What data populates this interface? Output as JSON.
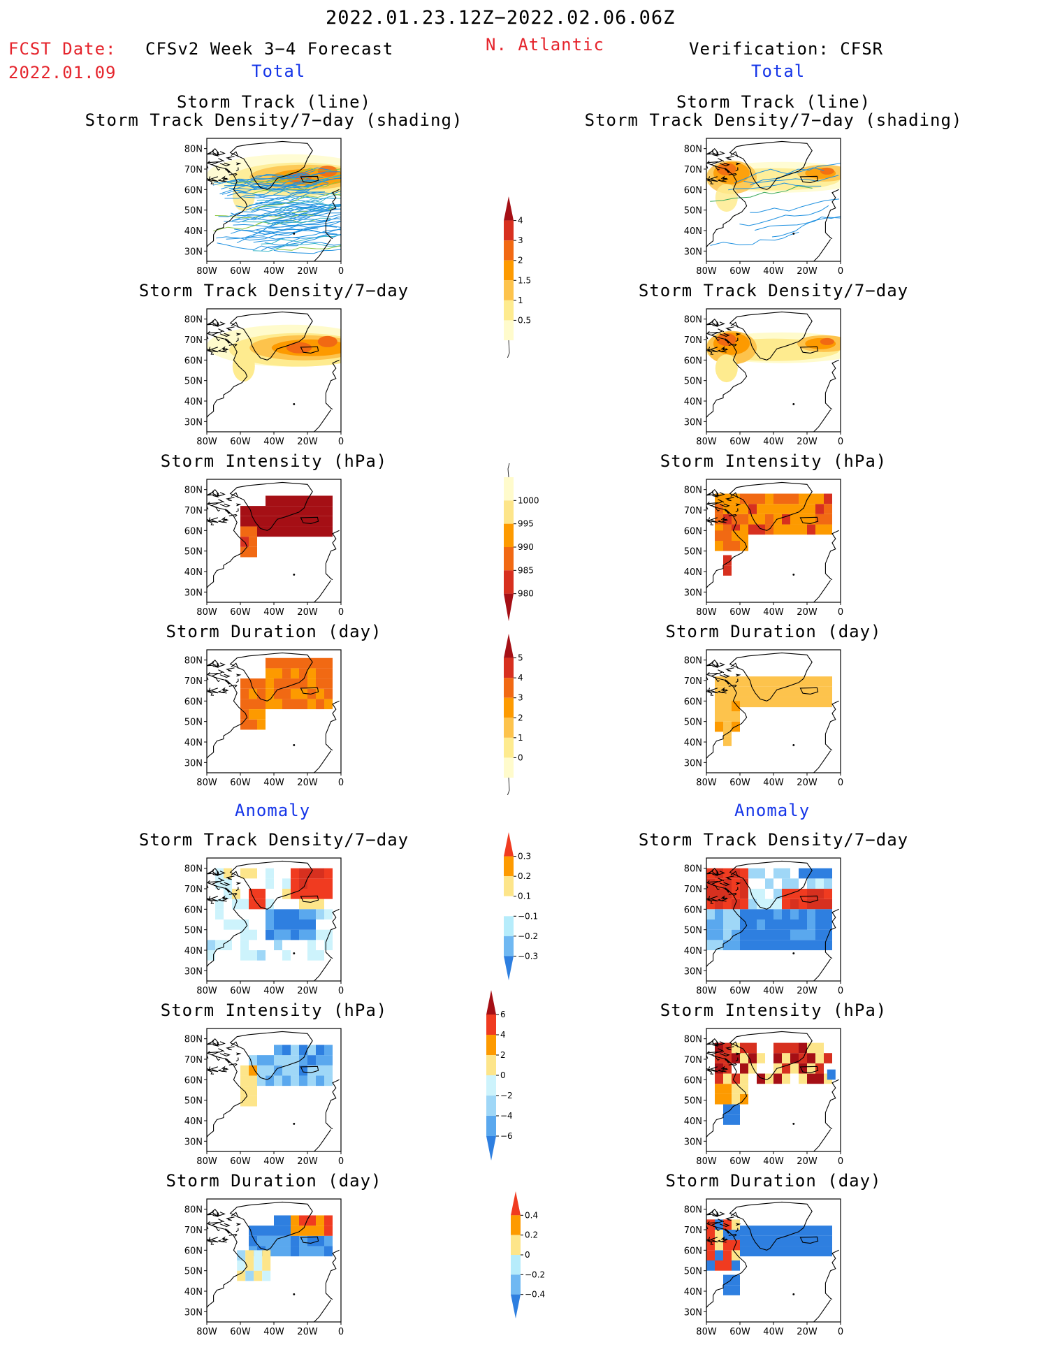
{
  "header": {
    "period": "2022.01.23.12Z−2022.02.06.06Z",
    "fcst_label": "FCST Date:",
    "fcst_date": "2022.01.09",
    "model": "CFSv2 Week 3−4 Forecast",
    "region": "N. Atlantic",
    "verification": "Verification: CFSR",
    "total_left": "Total",
    "total_right": "Total",
    "anomaly_left": "Anomaly",
    "anomaly_right": "Anomaly"
  },
  "titles": {
    "track_line": "Storm Track (line)",
    "track_shading": "Storm Track Density/7−day (shading)",
    "density": "Storm Track Density/7−day",
    "intensity": "Storm Intensity (hPa)",
    "duration": "Storm Duration (day)"
  },
  "axes": {
    "lat_labels": [
      "80N",
      "70N",
      "60N",
      "50N",
      "40N",
      "30N"
    ],
    "lon_labels": [
      "80W",
      "60W",
      "40W",
      "20W",
      "0"
    ]
  },
  "colorbars": [
    {
      "id": "density_total",
      "labels": [
        "4",
        "3",
        "2",
        "1.5",
        "1",
        "0.5"
      ],
      "colors": [
        "#a50f15",
        "#d7301f",
        "#f16913",
        "#fd9a00",
        "#fdc34c",
        "#feeb8f",
        "#fffbcc"
      ]
    },
    {
      "id": "intensity_total",
      "labels": [
        "1000",
        "995",
        "990",
        "985",
        "980"
      ],
      "colors": [
        "#fffbcc",
        "#fde58a",
        "#fd9a00",
        "#f16913",
        "#d7301f",
        "#a50f15"
      ]
    },
    {
      "id": "duration_total",
      "labels": [
        "5",
        "4",
        "3",
        "2",
        "1",
        "0"
      ],
      "colors": [
        "#a50f15",
        "#d7301f",
        "#f16913",
        "#fd9a00",
        "#fdc34c",
        "#feeb8f",
        "#fffbcc"
      ]
    },
    {
      "id": "density_anom",
      "labels": [
        "0.3",
        "0.2",
        "0.1",
        "−0.1",
        "−0.2",
        "−0.3"
      ],
      "colors": [
        "#f03b20",
        "#fd9a00",
        "#fde58a",
        "#ffffff",
        "#b6ecfb",
        "#6fb8f2",
        "#2e7fe0"
      ]
    },
    {
      "id": "intensity_anom",
      "labels": [
        "6",
        "4",
        "2",
        "0",
        "−2",
        "−4",
        "−6"
      ],
      "colors": [
        "#a50f15",
        "#f03b20",
        "#fd9a00",
        "#fde58a",
        "#cdf3fc",
        "#9fd7f7",
        "#5aa8ee",
        "#2e7fe0"
      ]
    },
    {
      "id": "duration_anom",
      "labels": [
        "0.4",
        "0.2",
        "0",
        "−0.2",
        "−0.4"
      ],
      "colors": [
        "#f03b20",
        "#fd9a00",
        "#fde58a",
        "#b6ecfb",
        "#6fb8f2",
        "#2e7fe0"
      ]
    }
  ]
}
